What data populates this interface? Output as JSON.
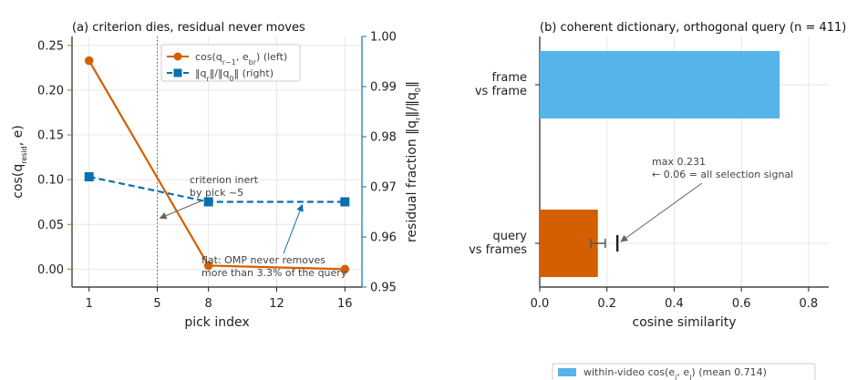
{
  "chart_data": [
    {
      "type": "line",
      "title": "(a) criterion dies, residual never moves",
      "xlabel": "pick index",
      "ylabel_left": "cos(q_resid, e)",
      "ylabel_right": "residual fraction ‖q_r‖/‖q_0‖",
      "xticks": [
        "1",
        "5",
        "8",
        "12",
        "16"
      ],
      "xlim": [
        0,
        17
      ],
      "ylim_left": [
        -0.02,
        0.26
      ],
      "ylim_right": [
        0.95,
        1.0
      ],
      "yticks_left": [
        "0.00",
        "0.05",
        "0.10",
        "0.15",
        "0.20",
        "0.25"
      ],
      "yticks_right": [
        "0.95",
        "0.96",
        "0.97",
        "0.98",
        "0.99",
        "1.00"
      ],
      "vline_x": 5,
      "series": [
        {
          "name": "cos(q_{r−1}, e_{b_r}) (left)",
          "axis": "left",
          "color": "#d45f00",
          "x": [
            1,
            8,
            16
          ],
          "y": [
            0.233,
            0.004,
            0.0
          ]
        },
        {
          "name": "‖q_r‖/‖q_0‖ (right)",
          "axis": "right",
          "color": "#0b6fad",
          "x": [
            1,
            8,
            16
          ],
          "y": [
            0.972,
            0.967,
            0.967
          ]
        }
      ],
      "legend": {
        "items": [
          {
            "label": "cos(q",
            "sub": "r−1",
            "label2": ", e",
            "sub2": "b",
            "sub3": "r",
            "label3": ")  (left)",
            "color": "#d45f00",
            "marker": "circle"
          },
          {
            "label": "‖q",
            "sub": "r",
            "label2": "‖/‖q",
            "sub2": "0",
            "label3": "‖  (right)",
            "color": "#0b6fad",
            "marker": "square"
          }
        ]
      },
      "annotations": [
        {
          "lines": [
            "criterion inert",
            "by pick ~5"
          ],
          "color": "#444444",
          "arrow_to": [
            5,
            0.057
          ]
        },
        {
          "lines": [
            "flat: OMP never removes",
            "more than 3.3% of the query"
          ],
          "color": "#0b6fad",
          "arrow_to": [
            13.5,
            0.9675
          ]
        }
      ]
    },
    {
      "type": "bar",
      "orientation": "horizontal",
      "title": "(b) coherent dictionary, orthogonal query (n = 411)",
      "xlabel": "cosine similarity",
      "xlim": [
        0,
        0.86
      ],
      "xticks": [
        "0.0",
        "0.2",
        "0.4",
        "0.6",
        "0.8"
      ],
      "categories": [
        {
          "lines": [
            "frame",
            "vs frame"
          ],
          "value": 0.714,
          "color": "#56b4e9"
        },
        {
          "lines": [
            "query",
            "vs frames"
          ],
          "value": 0.173,
          "color": "#d45f00",
          "err_low": 0.152,
          "err_high": 0.195
        }
      ],
      "max_marker": 0.231,
      "annotation": {
        "lines": [
          "max 0.231",
          "← 0.06 = all selection signal"
        ]
      },
      "legend": {
        "label": "within-video cos(e_i, e_j)  (mean 0.714)",
        "color": "#56b4e9"
      }
    }
  ]
}
